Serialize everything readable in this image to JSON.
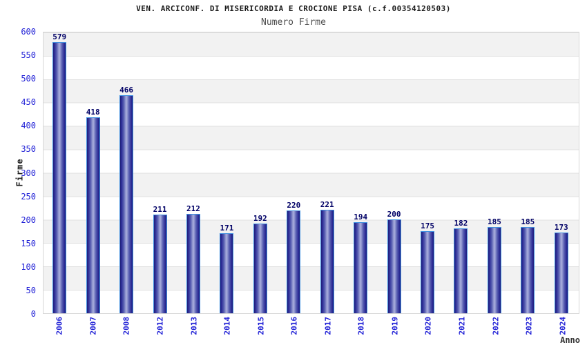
{
  "header": {
    "title": "VEN. ARCICONF. DI MISERICORDIA E CROCIONE PISA (c.f.00354120503)",
    "subtitle": "Numero Firme"
  },
  "chart_data": {
    "type": "bar",
    "title": "VEN. ARCICONF. DI MISERICORDIA E CROCIONE PISA (c.f.00354120503)",
    "subtitle": "Numero Firme",
    "xlabel": "Anno",
    "ylabel": "Firme",
    "categories": [
      "2006",
      "2007",
      "2008",
      "2012",
      "2013",
      "2014",
      "2015",
      "2016",
      "2017",
      "2018",
      "2019",
      "2020",
      "2021",
      "2022",
      "2023",
      "2024"
    ],
    "values": [
      579,
      418,
      466,
      211,
      212,
      171,
      192,
      220,
      221,
      194,
      200,
      175,
      182,
      185,
      185,
      173
    ],
    "ylim": [
      0,
      600
    ],
    "ytick_step": 50,
    "grid": "horizontal gridlines with alternating gray/white 50-unit bands",
    "legend": "none",
    "colors": {
      "bar_edge": "#1e1e78",
      "bar_center": "#a3a8d9",
      "bar_border": "#4090e0",
      "axis_text": "#2020d6",
      "value_label": "#000066",
      "band_gray": "#f2f2f2",
      "gridline": "#e0e0e0",
      "title_text": "#1a1a1a",
      "subtitle_text": "#4d4d4d"
    }
  }
}
